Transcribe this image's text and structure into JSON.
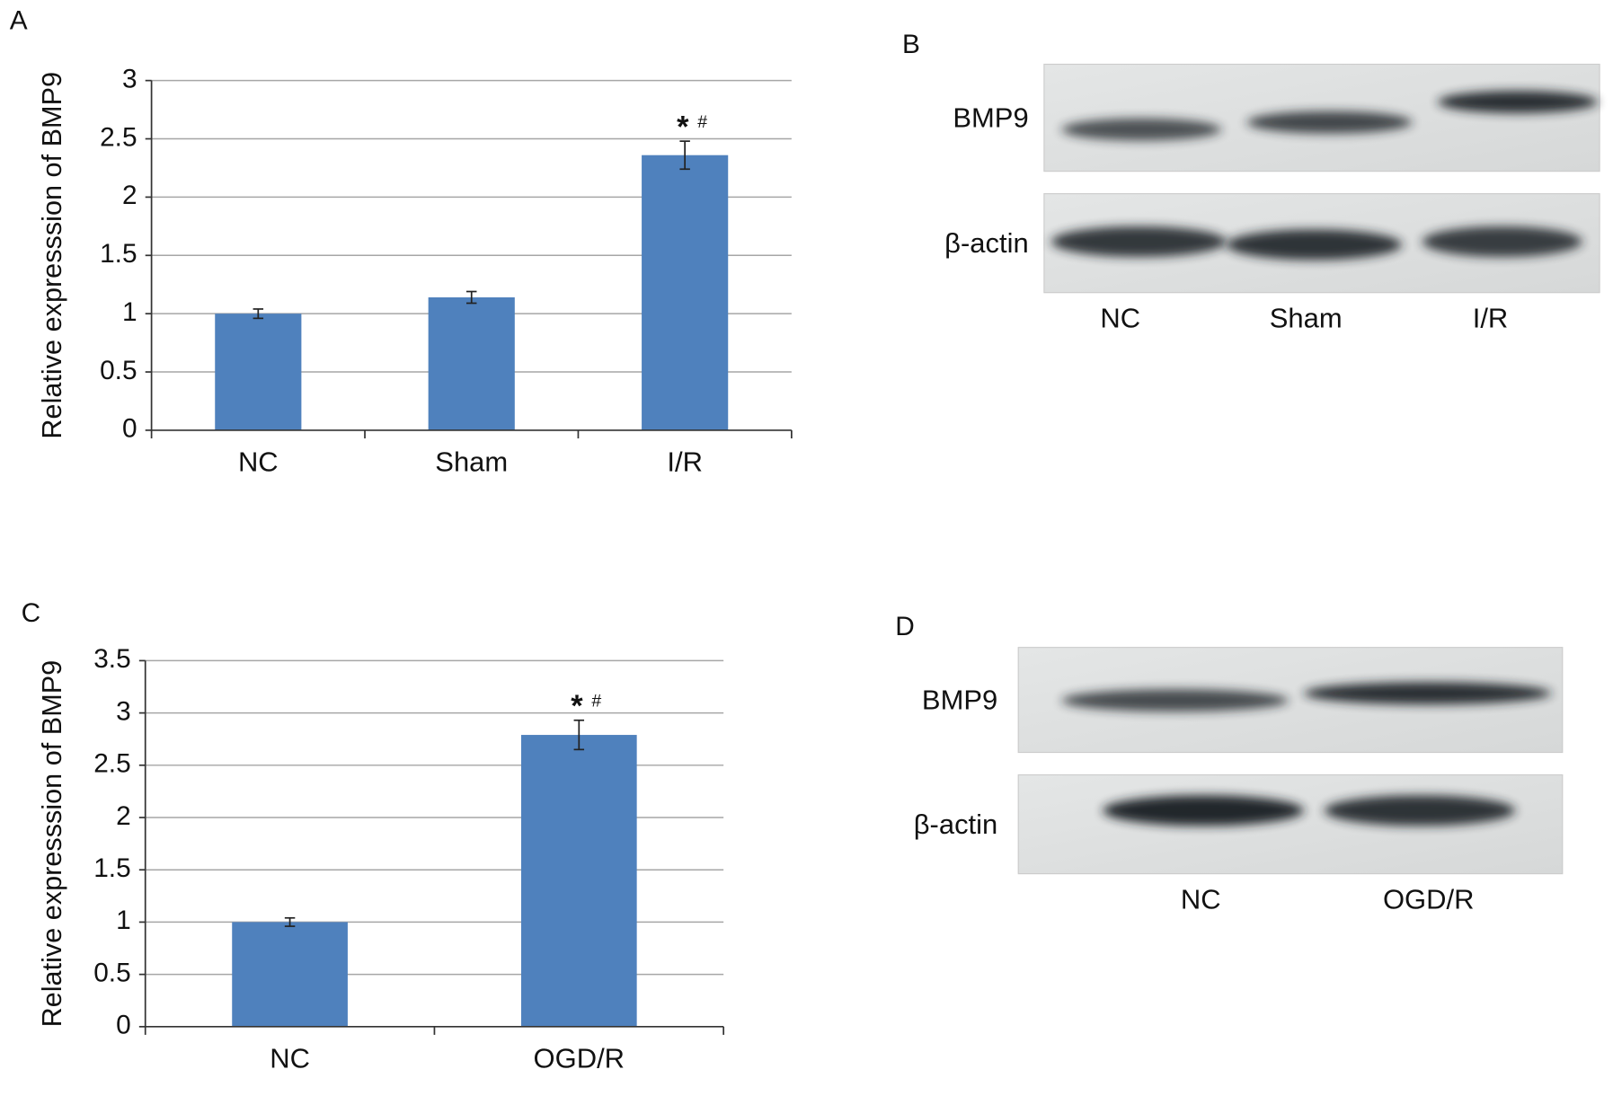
{
  "chart_data": [
    {
      "type": "bar",
      "label": "A",
      "y_label": "Relative expresssion of BMP9",
      "categories": [
        "NC",
        "Sham",
        "I/R"
      ],
      "values": [
        1.0,
        1.14,
        2.36
      ],
      "errors": [
        0.04,
        0.05,
        0.12
      ],
      "annotations": [
        null,
        null,
        [
          "*",
          "#"
        ]
      ],
      "color": "#4f81bd",
      "ylim": [
        0,
        3
      ],
      "yticks": [
        0,
        0.5,
        1,
        1.5,
        2,
        2.5,
        3
      ],
      "grid": true
    },
    {
      "type": "bar",
      "label": "C",
      "y_label": "Relative expresssion of BMP9",
      "categories": [
        "NC",
        "OGD/R"
      ],
      "values": [
        1.0,
        2.79
      ],
      "errors": [
        0.04,
        0.14
      ],
      "annotations": [
        null,
        [
          "*",
          "#"
        ]
      ],
      "color": "#4f81bd",
      "ylim": [
        0,
        3.5
      ],
      "yticks": [
        0,
        0.5,
        1,
        1.5,
        2,
        2.5,
        3,
        3.5
      ],
      "grid": true
    }
  ],
  "blots": [
    {
      "label": "B",
      "rows": [
        "BMP9",
        "β-actin"
      ],
      "lanes": [
        "NC",
        "Sham",
        "I/R"
      ]
    },
    {
      "label": "D",
      "rows": [
        "BMP9",
        "β-actin"
      ],
      "lanes": [
        "NC",
        "OGD/R"
      ]
    }
  ]
}
